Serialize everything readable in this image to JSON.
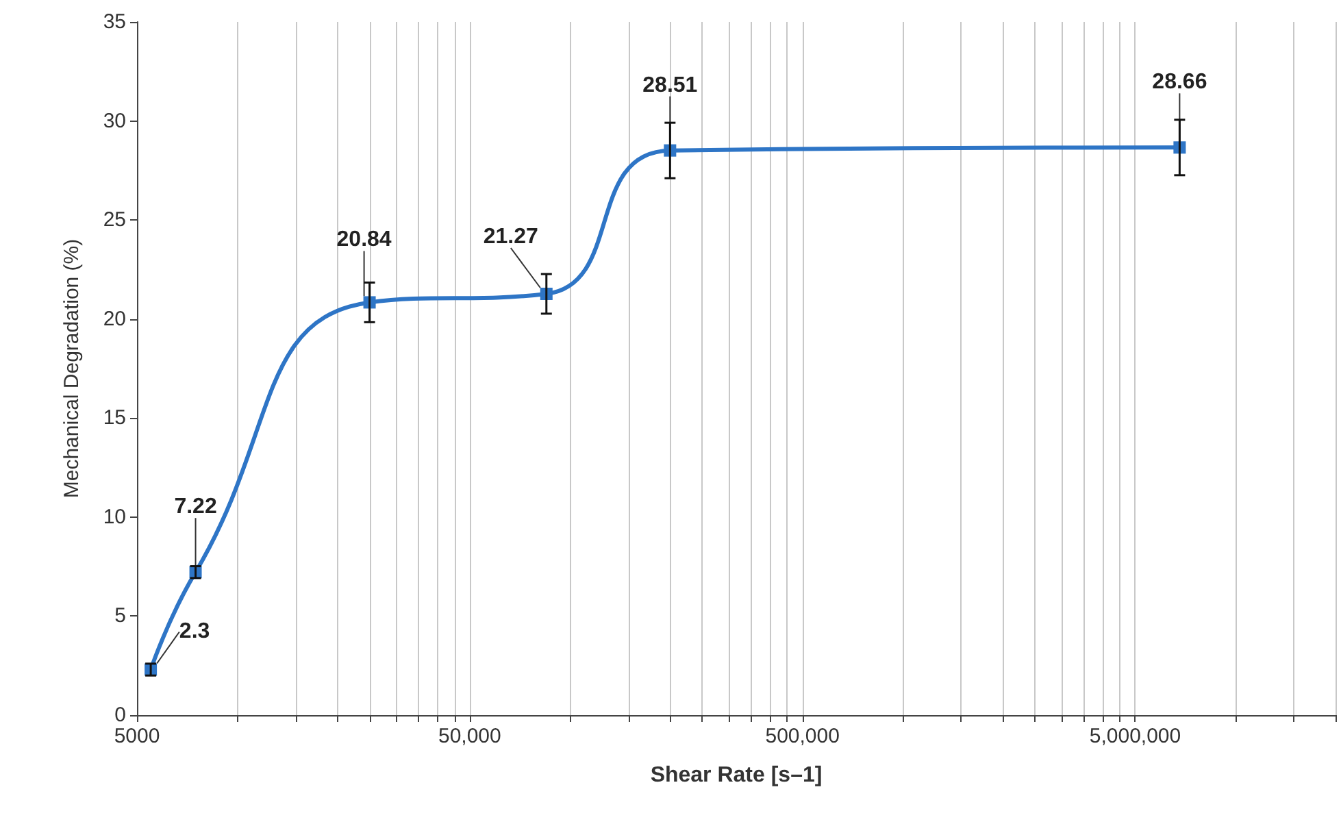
{
  "chart_data": {
    "type": "line",
    "xlabel": "Shear Rate [s–1]",
    "ylabel": "Mechanical Degradation (%)",
    "x": [
      5500,
      7500,
      25000,
      85000,
      200000,
      6800000
    ],
    "series": [
      {
        "color": "#2e75c6",
        "values": [
          2.3,
          7.22,
          20.84,
          21.27,
          28.51,
          28.66
        ],
        "errors": [
          0.3,
          0.3,
          1,
          1,
          1.4,
          1.4
        ]
      }
    ],
    "data_labels": true,
    "marker": "square",
    "line_style": "solid",
    "log": "x",
    "grid": "x",
    "xlim": [
      5000,
      20000000
    ],
    "ylim": [
      0,
      35
    ],
    "yticks": [
      0,
      5,
      10,
      15,
      20,
      25,
      30,
      35
    ],
    "xticks": [
      5000,
      {
        "value": 10000,
        "label": null
      },
      {
        "value": 15000,
        "label": null
      },
      {
        "value": 20000,
        "label": null
      },
      {
        "value": 25000,
        "label": null
      },
      {
        "value": 30000,
        "label": null
      },
      {
        "value": 35000,
        "label": null
      },
      {
        "value": 40000,
        "label": null
      },
      {
        "value": 45000,
        "label": null
      },
      {
        "value": 50000,
        "label": "50,000"
      },
      {
        "value": 100000,
        "label": null
      },
      {
        "value": 150000,
        "label": null
      },
      {
        "value": 200000,
        "label": null
      },
      {
        "value": 250000,
        "label": null
      },
      {
        "value": 300000,
        "label": null
      },
      {
        "value": 350000,
        "label": null
      },
      {
        "value": 400000,
        "label": null
      },
      {
        "value": 450000,
        "label": null
      },
      {
        "value": 500000,
        "label": "500,000"
      },
      {
        "value": 1000000,
        "label": null
      },
      {
        "value": 1500000,
        "label": null
      },
      {
        "value": 2000000,
        "label": null
      },
      {
        "value": 2500000,
        "label": null
      },
      {
        "value": 3000000,
        "label": null
      },
      {
        "value": 3500000,
        "label": null
      },
      {
        "value": 4000000,
        "label": null
      },
      {
        "value": 4500000,
        "label": null
      },
      {
        "value": 5000000,
        "label": "5,000,000"
      },
      {
        "value": 10000000,
        "label": null
      },
      {
        "value": 15000000,
        "label": null
      },
      {
        "value": 20000000,
        "label": null
      }
    ]
  }
}
